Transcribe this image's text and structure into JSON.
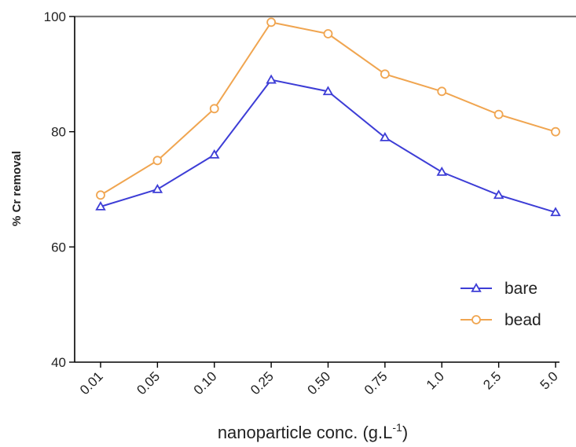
{
  "chart_data": {
    "type": "line",
    "categories": [
      "0.01",
      "0.05",
      "0.10",
      "0.25",
      "0.50",
      "0.75",
      "1.0",
      "2.5",
      "5.0"
    ],
    "series": [
      {
        "name": "bare",
        "values": [
          67,
          70,
          76,
          89,
          87,
          79,
          73,
          69,
          66
        ],
        "color": "#3d3dd6",
        "marker": "triangle"
      },
      {
        "name": "bead",
        "values": [
          69,
          75,
          84,
          99,
          97,
          90,
          87,
          83,
          80
        ],
        "color": "#f0a550",
        "marker": "circle"
      }
    ],
    "xlabel_main": "nanoparticle conc. (g.L",
    "xlabel_sup": "-1",
    "xlabel_close": ")",
    "ylabel": "% Cr  removal",
    "ylim": [
      40,
      100
    ],
    "yticks": [
      40,
      60,
      80,
      100
    ],
    "grid": false,
    "legend_position": "lower-right"
  }
}
